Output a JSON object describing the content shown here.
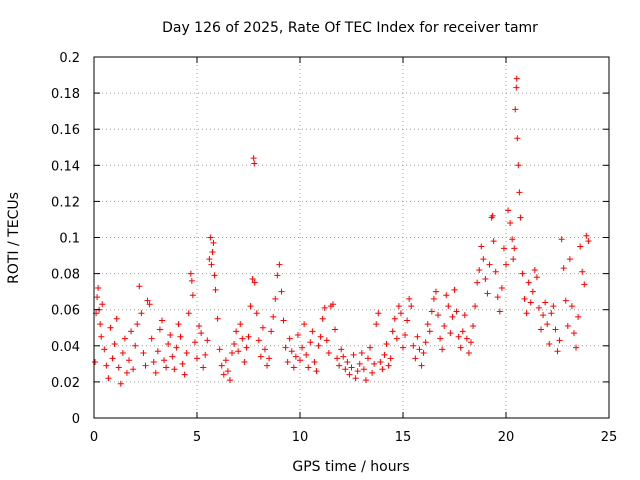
{
  "chart_data": {
    "type": "scatter",
    "title": "Day 126 of 2025, Rate Of TEC Index for receiver tamr",
    "xlabel": "GPS time / hours",
    "ylabel": "ROTI / TECUs",
    "xlim": [
      0,
      25
    ],
    "ylim": [
      0,
      0.2
    ],
    "x_ticks": [
      0,
      5,
      10,
      15,
      20,
      25
    ],
    "x_tick_labels": [
      "0",
      "5",
      "10",
      "15",
      "20",
      "25"
    ],
    "y_ticks": [
      0,
      0.02,
      0.04,
      0.06,
      0.08,
      0.1,
      0.12,
      0.14,
      0.16,
      0.18,
      0.2
    ],
    "y_tick_labels": [
      "0",
      "0.02",
      "0.04",
      "0.06",
      "0.08",
      "0.1",
      "0.12",
      "0.14",
      "0.16",
      "0.18",
      "0.2"
    ],
    "grid": true,
    "marker": "+",
    "series": [
      {
        "name": "ROTI",
        "color": "#ff0000",
        "points": [
          [
            0.05,
            0.031
          ],
          [
            0.1,
            0.058
          ],
          [
            0.15,
            0.067
          ],
          [
            0.2,
            0.072
          ],
          [
            0.25,
            0.06
          ],
          [
            0.3,
            0.052
          ],
          [
            0.35,
            0.045
          ],
          [
            0.4,
            0.063
          ],
          [
            0.5,
            0.038
          ],
          [
            0.6,
            0.029
          ],
          [
            0.7,
            0.022
          ],
          [
            0.8,
            0.05
          ],
          [
            0.9,
            0.033
          ],
          [
            1.0,
            0.041
          ],
          [
            1.1,
            0.055
          ],
          [
            1.2,
            0.028
          ],
          [
            1.3,
            0.019
          ],
          [
            1.4,
            0.036
          ],
          [
            1.5,
            0.044
          ],
          [
            1.6,
            0.025
          ],
          [
            1.7,
            0.032
          ],
          [
            1.8,
            0.048
          ],
          [
            1.9,
            0.027
          ],
          [
            2.0,
            0.04
          ],
          [
            2.1,
            0.052
          ],
          [
            2.2,
            0.073
          ],
          [
            2.3,
            0.058
          ],
          [
            2.4,
            0.036
          ],
          [
            2.5,
            0.029
          ],
          [
            2.6,
            0.065
          ],
          [
            2.7,
            0.063
          ],
          [
            2.8,
            0.044
          ],
          [
            2.9,
            0.031
          ],
          [
            3.0,
            0.025
          ],
          [
            3.1,
            0.037
          ],
          [
            3.2,
            0.049
          ],
          [
            3.3,
            0.054
          ],
          [
            3.4,
            0.032
          ],
          [
            3.5,
            0.028
          ],
          [
            3.6,
            0.041
          ],
          [
            3.7,
            0.046
          ],
          [
            3.8,
            0.034
          ],
          [
            3.9,
            0.027
          ],
          [
            4.0,
            0.039
          ],
          [
            4.1,
            0.052
          ],
          [
            4.2,
            0.045
          ],
          [
            4.3,
            0.03
          ],
          [
            4.4,
            0.024
          ],
          [
            4.5,
            0.036
          ],
          [
            4.6,
            0.058
          ],
          [
            4.7,
            0.08
          ],
          [
            4.75,
            0.076
          ],
          [
            4.8,
            0.068
          ],
          [
            4.9,
            0.042
          ],
          [
            5.0,
            0.033
          ],
          [
            5.1,
            0.051
          ],
          [
            5.2,
            0.047
          ],
          [
            5.3,
            0.028
          ],
          [
            5.4,
            0.035
          ],
          [
            5.5,
            0.043
          ],
          [
            5.6,
            0.088
          ],
          [
            5.65,
            0.1
          ],
          [
            5.7,
            0.085
          ],
          [
            5.75,
            0.092
          ],
          [
            5.8,
            0.097
          ],
          [
            5.85,
            0.079
          ],
          [
            5.9,
            0.071
          ],
          [
            6.0,
            0.055
          ],
          [
            6.1,
            0.038
          ],
          [
            6.2,
            0.029
          ],
          [
            6.3,
            0.024
          ],
          [
            6.4,
            0.032
          ],
          [
            6.5,
            0.026
          ],
          [
            6.6,
            0.021
          ],
          [
            6.7,
            0.036
          ],
          [
            6.8,
            0.041
          ],
          [
            6.9,
            0.048
          ],
          [
            7.0,
            0.037
          ],
          [
            7.1,
            0.052
          ],
          [
            7.2,
            0.044
          ],
          [
            7.3,
            0.031
          ],
          [
            7.4,
            0.039
          ],
          [
            7.5,
            0.045
          ],
          [
            7.6,
            0.062
          ],
          [
            7.7,
            0.077
          ],
          [
            7.75,
            0.144
          ],
          [
            7.78,
            0.141
          ],
          [
            7.8,
            0.075
          ],
          [
            7.9,
            0.058
          ],
          [
            8.0,
            0.043
          ],
          [
            8.1,
            0.034
          ],
          [
            8.2,
            0.05
          ],
          [
            8.3,
            0.038
          ],
          [
            8.4,
            0.029
          ],
          [
            8.5,
            0.033
          ],
          [
            8.6,
            0.048
          ],
          [
            8.7,
            0.056
          ],
          [
            8.8,
            0.066
          ],
          [
            8.9,
            0.079
          ],
          [
            9.0,
            0.085
          ],
          [
            9.1,
            0.07
          ],
          [
            9.2,
            0.054
          ],
          [
            9.3,
            0.039
          ],
          [
            9.4,
            0.031
          ],
          [
            9.5,
            0.044
          ],
          [
            9.6,
            0.037
          ],
          [
            9.7,
            0.028
          ],
          [
            9.8,
            0.034
          ],
          [
            9.9,
            0.046
          ],
          [
            10.0,
            0.032
          ],
          [
            10.1,
            0.039
          ],
          [
            10.2,
            0.052
          ],
          [
            10.3,
            0.035
          ],
          [
            10.4,
            0.028
          ],
          [
            10.5,
            0.042
          ],
          [
            10.6,
            0.048
          ],
          [
            10.7,
            0.031
          ],
          [
            10.8,
            0.026
          ],
          [
            10.9,
            0.04
          ],
          [
            11.0,
            0.045
          ],
          [
            11.1,
            0.055
          ],
          [
            11.2,
            0.061
          ],
          [
            11.3,
            0.043
          ],
          [
            11.4,
            0.036
          ],
          [
            11.5,
            0.062
          ],
          [
            11.6,
            0.063
          ],
          [
            11.7,
            0.049
          ],
          [
            11.8,
            0.033
          ],
          [
            11.9,
            0.029
          ],
          [
            12.0,
            0.038
          ],
          [
            12.1,
            0.034
          ],
          [
            12.2,
            0.027
          ],
          [
            12.3,
            0.031
          ],
          [
            12.4,
            0.024
          ],
          [
            12.5,
            0.028
          ],
          [
            12.6,
            0.035
          ],
          [
            12.7,
            0.022
          ],
          [
            12.8,
            0.026
          ],
          [
            12.9,
            0.03
          ],
          [
            13.0,
            0.036
          ],
          [
            13.1,
            0.027
          ],
          [
            13.2,
            0.021
          ],
          [
            13.3,
            0.033
          ],
          [
            13.4,
            0.039
          ],
          [
            13.5,
            0.025
          ],
          [
            13.6,
            0.03
          ],
          [
            13.7,
            0.052
          ],
          [
            13.8,
            0.058
          ],
          [
            13.9,
            0.031
          ],
          [
            14.0,
            0.027
          ],
          [
            14.1,
            0.035
          ],
          [
            14.2,
            0.041
          ],
          [
            14.3,
            0.029
          ],
          [
            14.4,
            0.033
          ],
          [
            14.5,
            0.048
          ],
          [
            14.6,
            0.055
          ],
          [
            14.7,
            0.044
          ],
          [
            14.8,
            0.062
          ],
          [
            14.9,
            0.058
          ],
          [
            15.0,
            0.039
          ],
          [
            15.1,
            0.046
          ],
          [
            15.2,
            0.054
          ],
          [
            15.3,
            0.066
          ],
          [
            15.4,
            0.062
          ],
          [
            15.5,
            0.04
          ],
          [
            15.6,
            0.033
          ],
          [
            15.7,
            0.045
          ],
          [
            15.8,
            0.038
          ],
          [
            15.9,
            0.029
          ],
          [
            16.0,
            0.036
          ],
          [
            16.1,
            0.042
          ],
          [
            16.2,
            0.052
          ],
          [
            16.3,
            0.048
          ],
          [
            16.4,
            0.059
          ],
          [
            16.5,
            0.066
          ],
          [
            16.6,
            0.07
          ],
          [
            16.7,
            0.057
          ],
          [
            16.8,
            0.044
          ],
          [
            16.9,
            0.038
          ],
          [
            17.0,
            0.051
          ],
          [
            17.1,
            0.068
          ],
          [
            17.2,
            0.062
          ],
          [
            17.3,
            0.047
          ],
          [
            17.4,
            0.056
          ],
          [
            17.5,
            0.071
          ],
          [
            17.6,
            0.059
          ],
          [
            17.7,
            0.045
          ],
          [
            17.8,
            0.039
          ],
          [
            17.9,
            0.048
          ],
          [
            18.0,
            0.057
          ],
          [
            18.1,
            0.044
          ],
          [
            18.2,
            0.036
          ],
          [
            18.3,
            0.042
          ],
          [
            18.4,
            0.051
          ],
          [
            18.5,
            0.062
          ],
          [
            18.6,
            0.075
          ],
          [
            18.7,
            0.082
          ],
          [
            18.8,
            0.095
          ],
          [
            18.9,
            0.088
          ],
          [
            19.0,
            0.077
          ],
          [
            19.1,
            0.069
          ],
          [
            19.2,
            0.085
          ],
          [
            19.3,
            0.111
          ],
          [
            19.35,
            0.112
          ],
          [
            19.4,
            0.098
          ],
          [
            19.5,
            0.081
          ],
          [
            19.6,
            0.067
          ],
          [
            19.7,
            0.059
          ],
          [
            19.8,
            0.072
          ],
          [
            19.9,
            0.094
          ],
          [
            20.0,
            0.085
          ],
          [
            20.1,
            0.115
          ],
          [
            20.2,
            0.108
          ],
          [
            20.3,
            0.099
          ],
          [
            20.35,
            0.088
          ],
          [
            20.4,
            0.094
          ],
          [
            20.45,
            0.171
          ],
          [
            20.5,
            0.183
          ],
          [
            20.52,
            0.188
          ],
          [
            20.55,
            0.155
          ],
          [
            20.6,
            0.14
          ],
          [
            20.65,
            0.125
          ],
          [
            20.7,
            0.111
          ],
          [
            20.8,
            0.08
          ],
          [
            20.9,
            0.066
          ],
          [
            21.0,
            0.058
          ],
          [
            21.1,
            0.075
          ],
          [
            21.2,
            0.064
          ],
          [
            21.3,
            0.07
          ],
          [
            21.4,
            0.082
          ],
          [
            21.5,
            0.078
          ],
          [
            21.6,
            0.061
          ],
          [
            21.7,
            0.049
          ],
          [
            21.8,
            0.057
          ],
          [
            21.9,
            0.064
          ],
          [
            22.0,
            0.052
          ],
          [
            22.1,
            0.041
          ],
          [
            22.2,
            0.058
          ],
          [
            22.3,
            0.062
          ],
          [
            22.4,
            0.049
          ],
          [
            22.5,
            0.037
          ],
          [
            22.6,
            0.043
          ],
          [
            22.7,
            0.099
          ],
          [
            22.8,
            0.083
          ],
          [
            22.9,
            0.065
          ],
          [
            23.0,
            0.051
          ],
          [
            23.1,
            0.088
          ],
          [
            23.2,
            0.062
          ],
          [
            23.3,
            0.047
          ],
          [
            23.4,
            0.039
          ],
          [
            23.5,
            0.056
          ],
          [
            23.6,
            0.095
          ],
          [
            23.7,
            0.081
          ],
          [
            23.8,
            0.074
          ],
          [
            23.9,
            0.101
          ],
          [
            24.0,
            0.098
          ]
        ]
      }
    ]
  }
}
